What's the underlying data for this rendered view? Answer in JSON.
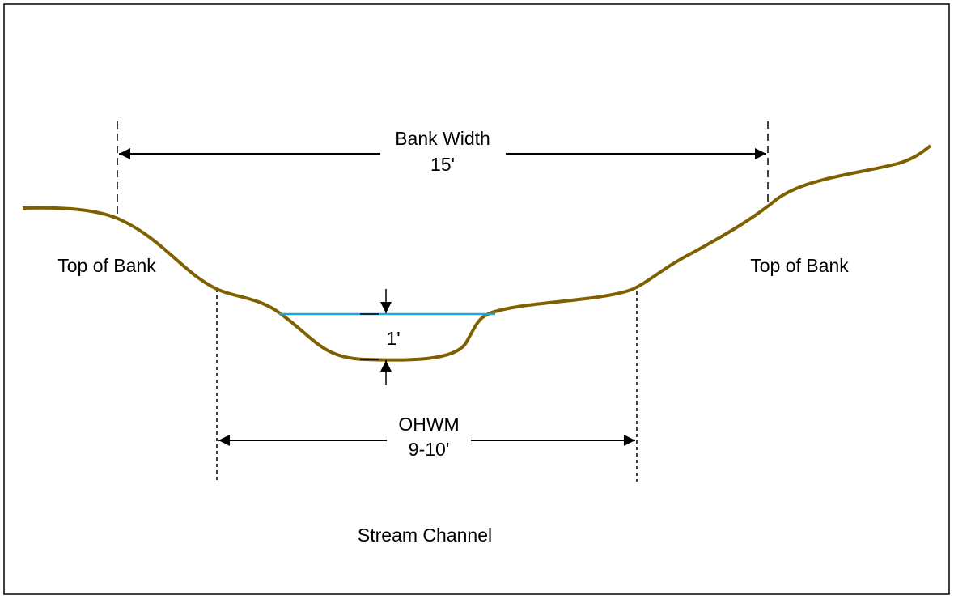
{
  "labels": {
    "bank_width": "Bank Width",
    "bank_width_value": "15'",
    "top_of_bank_left": "Top of Bank",
    "top_of_bank_right": "Top of Bank",
    "water_depth": "1'",
    "ohwm": "OHWM",
    "ohwm_value": "9-10'",
    "stream_channel": "Stream Channel"
  }
}
